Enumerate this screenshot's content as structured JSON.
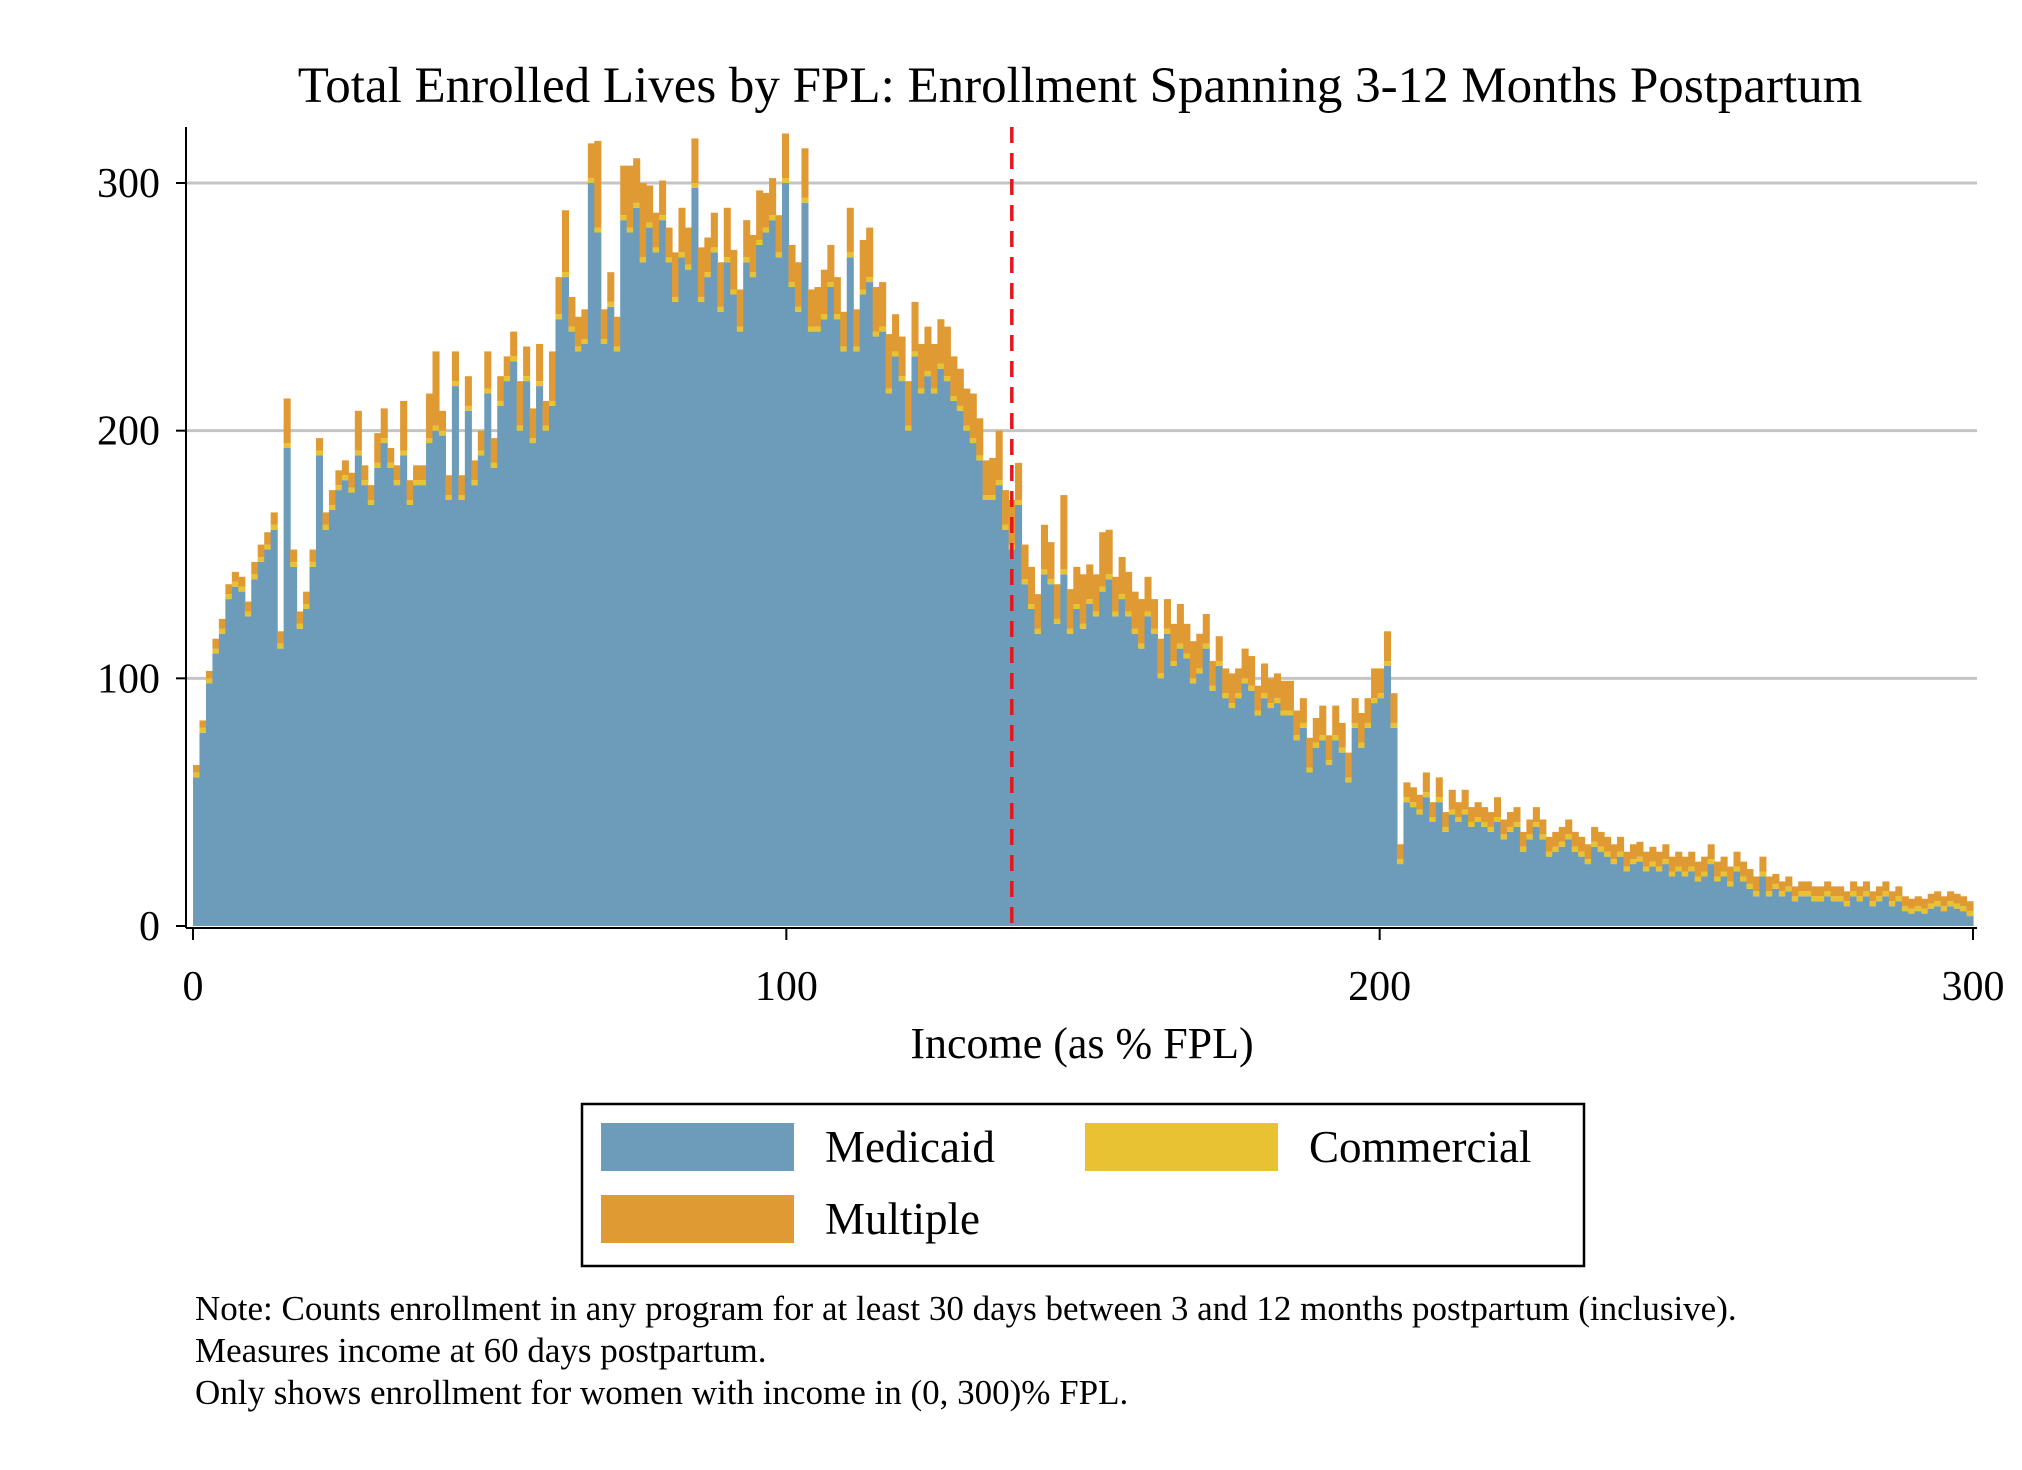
{
  "chart_data": {
    "type": "bar",
    "stacked": true,
    "title": "Total Enrolled Lives by FPL: Enrollment Spanning 3-12 Months Postpartum",
    "xlabel": "Income (as % FPL)",
    "ylabel": "",
    "xlim": [
      0,
      300
    ],
    "ylim": [
      0,
      320
    ],
    "x_ticks": [
      "0",
      "100",
      "200",
      "300"
    ],
    "y_ticks": [
      "0",
      "100",
      "200",
      "300"
    ],
    "grid": "horizontal",
    "reference_line": {
      "x": 138,
      "style": "dashed",
      "color": "#e8161b"
    },
    "bin_width": 1,
    "colors": {
      "Medicaid": "#6d9cba",
      "Commercial": "#e8c232",
      "Multiple": "#e09a33"
    },
    "legend": {
      "placement": "bottom",
      "entries": [
        "Medicaid",
        "Commercial",
        "Multiple"
      ]
    },
    "series": [
      {
        "name": "Medicaid",
        "values": [
          60,
          78,
          98,
          110,
          118,
          132,
          137,
          135,
          125,
          140,
          147,
          152,
          160,
          112,
          193,
          145,
          120,
          128,
          145,
          190,
          160,
          168,
          176,
          180,
          175,
          190,
          178,
          170,
          185,
          195,
          185,
          178,
          190,
          170,
          178,
          178,
          195,
          200,
          198,
          172,
          218,
          172,
          208,
          178,
          190,
          215,
          185,
          210,
          220,
          228,
          200,
          220,
          195,
          218,
          200,
          210,
          245,
          262,
          240,
          232,
          235,
          300,
          280,
          235,
          250,
          232,
          285,
          280,
          290,
          268,
          282,
          272,
          285,
          268,
          252,
          270,
          265,
          298,
          252,
          262,
          272,
          248,
          268,
          255,
          240,
          268,
          262,
          275,
          280,
          285,
          270,
          300,
          258,
          248,
          292,
          240,
          240,
          245,
          258,
          245,
          232,
          270,
          232,
          255,
          260,
          238,
          240,
          215,
          230,
          220,
          200,
          230,
          215,
          222,
          215,
          225,
          220,
          212,
          208,
          200,
          195,
          188,
          172,
          172,
          178,
          160,
          152,
          170,
          138,
          128,
          118,
          142,
          138,
          122,
          142,
          118,
          128,
          120,
          130,
          125,
          135,
          140,
          125,
          132,
          125,
          118,
          112,
          125,
          118,
          100,
          118,
          105,
          112,
          108,
          98,
          102,
          112,
          95,
          105,
          92,
          88,
          92,
          98,
          95,
          85,
          92,
          88,
          90,
          85,
          85,
          75,
          80,
          62,
          72,
          75,
          65,
          75,
          70,
          58,
          80,
          72,
          80,
          90,
          92,
          105,
          80,
          25,
          50,
          48,
          45,
          52,
          42,
          50,
          38,
          45,
          42,
          45,
          40,
          42,
          40,
          38,
          42,
          35,
          38,
          40,
          30,
          35,
          40,
          35,
          28,
          30,
          32,
          35,
          30,
          28,
          25,
          32,
          30,
          28,
          25,
          28,
          22,
          25,
          26,
          22,
          24,
          22,
          25,
          20,
          22,
          20,
          22,
          18,
          20,
          25,
          18,
          20,
          16,
          22,
          18,
          15,
          12,
          20,
          12,
          15,
          12,
          14,
          10,
          12,
          12,
          10,
          10,
          12,
          10,
          10,
          8,
          12,
          10,
          12,
          8,
          10,
          12,
          8,
          10,
          6,
          5,
          6,
          5,
          7,
          8,
          6,
          8,
          7,
          6,
          4
        ]
      },
      {
        "name": "Commercial",
        "values": [
          2,
          2,
          2,
          2,
          2,
          2,
          2,
          2,
          2,
          2,
          2,
          2,
          2,
          2,
          2,
          2,
          2,
          2,
          2,
          2,
          2,
          2,
          2,
          2,
          2,
          2,
          2,
          2,
          2,
          2,
          2,
          2,
          2,
          2,
          2,
          2,
          2,
          2,
          2,
          2,
          2,
          2,
          2,
          2,
          2,
          2,
          2,
          2,
          2,
          2,
          2,
          2,
          2,
          2,
          2,
          2,
          2,
          2,
          2,
          2,
          2,
          2,
          2,
          2,
          2,
          2,
          2,
          2,
          2,
          2,
          2,
          2,
          2,
          2,
          2,
          2,
          2,
          2,
          2,
          2,
          2,
          2,
          2,
          2,
          2,
          2,
          2,
          2,
          2,
          2,
          2,
          2,
          2,
          2,
          2,
          2,
          2,
          2,
          2,
          2,
          2,
          2,
          2,
          2,
          2,
          2,
          2,
          2,
          2,
          2,
          2,
          2,
          2,
          2,
          2,
          2,
          2,
          2,
          2,
          2,
          2,
          2,
          2,
          2,
          2,
          2,
          2,
          2,
          2,
          2,
          2,
          2,
          2,
          2,
          2,
          2,
          2,
          2,
          2,
          2,
          2,
          2,
          2,
          2,
          2,
          2,
          2,
          2,
          2,
          2,
          2,
          2,
          2,
          2,
          2,
          2,
          2,
          2,
          2,
          2,
          2,
          2,
          2,
          2,
          2,
          2,
          2,
          2,
          2,
          2,
          2,
          2,
          2,
          2,
          2,
          2,
          2,
          2,
          2,
          2,
          2,
          2,
          2,
          2,
          2,
          2,
          2,
          2,
          2,
          2,
          2,
          2,
          2,
          2,
          2,
          2,
          2,
          2,
          2,
          2,
          2,
          2,
          2,
          2,
          2,
          2,
          2,
          2,
          2,
          2,
          2,
          2,
          2,
          2,
          2,
          2,
          2,
          2,
          2,
          2,
          2,
          2,
          2,
          2,
          2,
          2,
          2,
          2,
          2,
          2,
          2,
          2,
          2,
          2,
          2,
          2,
          2,
          2,
          2,
          2,
          2,
          2,
          2,
          2,
          2,
          2,
          2,
          2,
          2,
          2,
          2,
          2,
          2,
          2,
          2,
          2,
          2,
          2,
          2,
          2,
          2,
          2,
          2,
          2,
          2,
          2,
          2,
          2,
          2,
          2,
          2,
          2,
          2,
          2,
          2,
          2,
          2,
          2,
          2,
          2,
          2,
          2,
          2,
          2,
          2,
          2,
          2,
          2,
          2,
          2,
          2,
          2,
          2,
          2,
          2,
          2,
          2,
          2,
          2,
          2,
          2
        ]
      },
      {
        "name": "Multiple",
        "values": [
          3,
          3,
          3,
          4,
          4,
          4,
          4,
          4,
          4,
          5,
          5,
          5,
          5,
          5,
          18,
          5,
          5,
          5,
          5,
          5,
          5,
          6,
          6,
          6,
          6,
          16,
          6,
          6,
          12,
          12,
          6,
          6,
          20,
          8,
          6,
          6,
          18,
          30,
          8,
          8,
          12,
          8,
          12,
          8,
          8,
          15,
          10,
          10,
          8,
          10,
          18,
          12,
          12,
          15,
          10,
          20,
          15,
          25,
          12,
          12,
          12,
          14,
          35,
          12,
          12,
          12,
          20,
          25,
          18,
          30,
          15,
          14,
          14,
          12,
          18,
          18,
          15,
          18,
          20,
          14,
          14,
          18,
          20,
          16,
          15,
          15,
          15,
          20,
          14,
          15,
          15,
          18,
          15,
          18,
          20,
          15,
          16,
          18,
          15,
          15,
          14,
          18,
          15,
          20,
          20,
          18,
          18,
          22,
          15,
          16,
          18,
          20,
          18,
          18,
          18,
          18,
          20,
          16,
          15,
          15,
          18,
          15,
          14,
          15,
          20,
          14,
          18,
          15,
          14,
          15,
          14,
          18,
          15,
          14,
          30,
          16,
          15,
          20,
          14,
          15,
          22,
          18,
          14,
          15,
          16,
          15,
          18,
          14,
          12,
          14,
          12,
          15,
          16,
          12,
          15,
          14,
          12,
          10,
          10,
          10,
          12,
          10,
          12,
          12,
          10,
          12,
          10,
          10,
          12,
          12,
          10,
          10,
          12,
          10,
          12,
          10,
          12,
          10,
          10,
          10,
          12,
          10,
          12,
          10,
          12,
          12,
          6,
          6,
          6,
          6,
          8,
          6,
          8,
          6,
          8,
          6,
          8,
          6,
          6,
          6,
          6,
          8,
          6,
          6,
          6,
          6,
          6,
          6,
          6,
          6,
          6,
          6,
          6,
          6,
          6,
          6,
          6,
          6,
          6,
          6,
          6,
          6,
          6,
          6,
          6,
          6,
          6,
          6,
          6,
          6,
          6,
          6,
          6,
          6,
          6,
          6,
          6,
          6,
          6,
          6,
          6,
          6,
          6,
          6,
          4,
          4,
          4,
          4,
          4,
          4,
          4,
          4,
          4,
          4,
          4,
          4,
          4,
          4,
          4,
          4,
          4,
          4,
          4,
          4,
          4,
          4,
          4,
          4,
          4,
          4,
          4,
          4,
          4,
          4,
          4,
          4,
          4,
          4
        ]
      }
    ]
  },
  "note_lines": [
    "Note: Counts enrollment in any program for at least 30 days between 3 and 12 months postpartum (inclusive).",
    "Measures income at 60 days postpartum.",
    "Only shows enrollment for women with income in (0, 300)% FPL."
  ]
}
